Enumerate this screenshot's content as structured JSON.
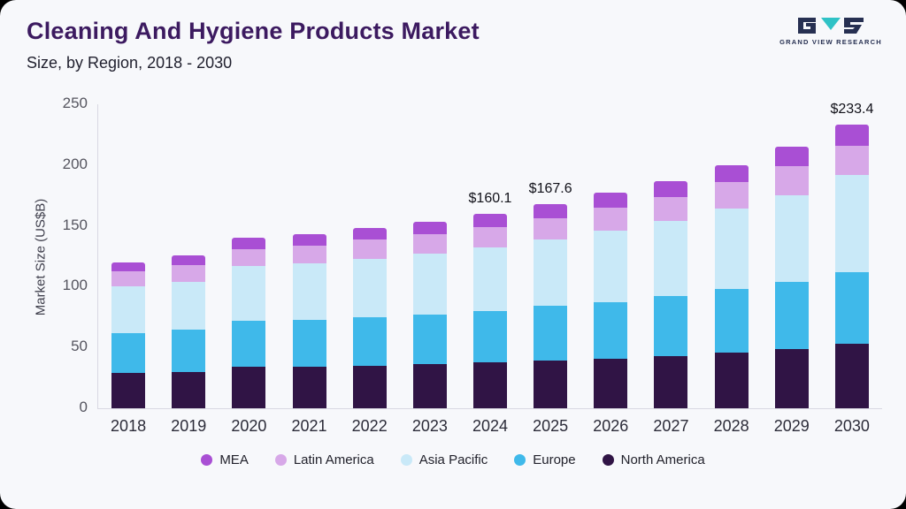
{
  "header": {
    "title": "Cleaning And Hygiene Products Market",
    "subtitle": "Size, by Region, 2018 - 2030",
    "logo_text": "GRAND VIEW RESEARCH"
  },
  "colors": {
    "background": "#f7f8fb",
    "frame_border": "#000000",
    "title": "#3c1a60",
    "logo_navy": "#273052",
    "logo_teal": "#2fc2c6"
  },
  "chart_data": {
    "type": "bar",
    "stacked": true,
    "title": "Cleaning And Hygiene Products Market Size, by Region, 2018 - 2030",
    "xlabel": "",
    "ylabel": "Market Size (US$B)",
    "ylim": [
      0,
      250
    ],
    "yticks": [
      0,
      50,
      100,
      150,
      200,
      250
    ],
    "grid": false,
    "legend_position": "bottom",
    "categories": [
      "2018",
      "2019",
      "2020",
      "2021",
      "2022",
      "2023",
      "2024",
      "2025",
      "2026",
      "2027",
      "2028",
      "2029",
      "2030"
    ],
    "series": [
      {
        "name": "North America",
        "color": "#301445",
        "values": [
          29,
          30,
          34,
          34,
          35,
          36,
          38,
          39,
          41,
          43,
          46,
          49,
          53
        ]
      },
      {
        "name": "Europe",
        "color": "#3fb9ea",
        "values": [
          33,
          35,
          38,
          39,
          40,
          41,
          42,
          45,
          46,
          49,
          52,
          55,
          59
        ]
      },
      {
        "name": "Asia Pacific",
        "color": "#c9e9f8",
        "values": [
          38,
          39,
          45,
          46,
          48,
          50,
          52,
          55,
          59,
          62,
          66,
          71,
          80
        ]
      },
      {
        "name": "Latin America",
        "color": "#d7a8e8",
        "values": [
          13,
          14,
          14,
          15,
          16,
          16,
          17,
          17,
          19,
          20,
          22,
          24,
          24
        ]
      },
      {
        "name": "MEA",
        "color": "#a94fd4",
        "values": [
          7,
          8,
          9,
          9,
          9,
          10,
          11.1,
          11.6,
          12,
          13,
          14,
          16,
          17.4
        ]
      }
    ],
    "totals": [
      120,
      126,
      140,
      143,
      148,
      153,
      160.1,
      167.6,
      177,
      187,
      200,
      215,
      233.4
    ],
    "annotations": [
      {
        "category": "2024",
        "label": "$160.1"
      },
      {
        "category": "2025",
        "label": "$167.6"
      },
      {
        "category": "2030",
        "label": "$233.4"
      }
    ],
    "legend": [
      {
        "label": "MEA",
        "color": "#a94fd4"
      },
      {
        "label": "Latin America",
        "color": "#d7a8e8"
      },
      {
        "label": "Asia Pacific",
        "color": "#c9e9f8"
      },
      {
        "label": "Europe",
        "color": "#3fb9ea"
      },
      {
        "label": "North America",
        "color": "#301445"
      }
    ]
  }
}
